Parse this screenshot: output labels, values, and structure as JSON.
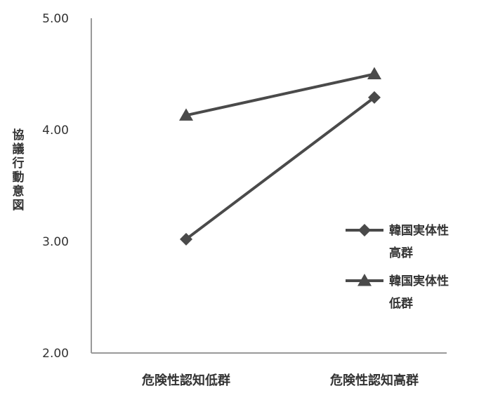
{
  "chart_data": {
    "type": "line",
    "categories": [
      "危険性認知低群",
      "危険性認知高群"
    ],
    "series": [
      {
        "name": "韓国実体性高群",
        "values": [
          3.02,
          4.29
        ],
        "marker": "diamond",
        "color": "#4a4a4a"
      },
      {
        "name": "韓国実体性低群",
        "values": [
          4.13,
          4.5
        ],
        "marker": "triangle",
        "color": "#4a4a4a"
      }
    ],
    "ylabel": "協議行動意図",
    "xlabel": "",
    "title": "",
    "ylim": [
      2.0,
      5.0
    ],
    "yticks": [
      "2.00",
      "3.00",
      "4.00",
      "5.00"
    ],
    "grid": false,
    "legend_position": "right"
  }
}
